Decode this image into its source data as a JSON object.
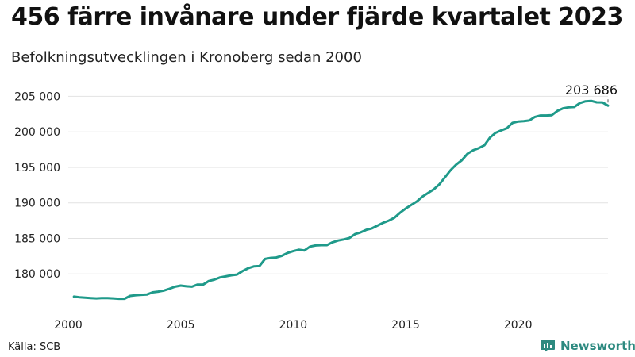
{
  "title": "456 färre invånare under fjärde kvartalet 2023",
  "subtitle": "Befolkningsutvecklingen i Kronoberg sedan 2000",
  "source": "Källa: SCB",
  "brand": "Newsworthy",
  "colors": {
    "line": "#1f9a8a",
    "grid": "#e2e2e2",
    "brand": "#2d8a80"
  },
  "chart_data": {
    "type": "line",
    "title": "456 färre invånare under fjärde kvartalet 2023",
    "subtitle": "Befolkningsutvecklingen i Kronoberg sedan 2000",
    "xlabel": "",
    "ylabel": "",
    "xlim": [
      2000,
      2024
    ],
    "ylim": [
      175000,
      206500
    ],
    "x_ticks": [
      2000,
      2005,
      2010,
      2015,
      2020
    ],
    "y_ticks": [
      180000,
      185000,
      190000,
      195000,
      200000,
      205000
    ],
    "y_tick_labels": [
      "180 000",
      "185 000",
      "190 000",
      "195 000",
      "200 000",
      "205 000"
    ],
    "grid": "horizontal",
    "end_label": "203 686",
    "series": [
      {
        "values": [
          [
            2000.25,
            176800
          ],
          [
            2000.5,
            176700
          ],
          [
            2000.75,
            176650
          ],
          [
            2001.0,
            176600
          ],
          [
            2001.25,
            176550
          ],
          [
            2001.5,
            176600
          ],
          [
            2001.75,
            176600
          ],
          [
            2002.0,
            176550
          ],
          [
            2002.25,
            176500
          ],
          [
            2002.5,
            176500
          ],
          [
            2002.75,
            176900
          ],
          [
            2003.0,
            177000
          ],
          [
            2003.25,
            177050
          ],
          [
            2003.5,
            177100
          ],
          [
            2003.75,
            177400
          ],
          [
            2004.0,
            177500
          ],
          [
            2004.25,
            177650
          ],
          [
            2004.5,
            177900
          ],
          [
            2004.75,
            178200
          ],
          [
            2005.0,
            178350
          ],
          [
            2005.25,
            178250
          ],
          [
            2005.5,
            178200
          ],
          [
            2005.75,
            178500
          ],
          [
            2006.0,
            178500
          ],
          [
            2006.25,
            179000
          ],
          [
            2006.5,
            179200
          ],
          [
            2006.75,
            179500
          ],
          [
            2007.0,
            179650
          ],
          [
            2007.25,
            179800
          ],
          [
            2007.5,
            179900
          ],
          [
            2007.75,
            180400
          ],
          [
            2008.0,
            180800
          ],
          [
            2008.25,
            181050
          ],
          [
            2008.5,
            181100
          ],
          [
            2008.75,
            182100
          ],
          [
            2009.0,
            182250
          ],
          [
            2009.25,
            182300
          ],
          [
            2009.5,
            182550
          ],
          [
            2009.75,
            182950
          ],
          [
            2010.0,
            183200
          ],
          [
            2010.25,
            183400
          ],
          [
            2010.5,
            183300
          ],
          [
            2010.75,
            183850
          ],
          [
            2011.0,
            184000
          ],
          [
            2011.25,
            184050
          ],
          [
            2011.5,
            184050
          ],
          [
            2011.75,
            184450
          ],
          [
            2012.0,
            184700
          ],
          [
            2012.25,
            184850
          ],
          [
            2012.5,
            185050
          ],
          [
            2012.75,
            185600
          ],
          [
            2013.0,
            185850
          ],
          [
            2013.25,
            186200
          ],
          [
            2013.5,
            186400
          ],
          [
            2013.75,
            186800
          ],
          [
            2014.0,
            187200
          ],
          [
            2014.25,
            187500
          ],
          [
            2014.5,
            187900
          ],
          [
            2014.75,
            188600
          ],
          [
            2015.0,
            189200
          ],
          [
            2015.25,
            189700
          ],
          [
            2015.5,
            190200
          ],
          [
            2015.75,
            190900
          ],
          [
            2016.0,
            191400
          ],
          [
            2016.25,
            191900
          ],
          [
            2016.5,
            192600
          ],
          [
            2016.75,
            193600
          ],
          [
            2017.0,
            194600
          ],
          [
            2017.25,
            195400
          ],
          [
            2017.5,
            196000
          ],
          [
            2017.75,
            196900
          ],
          [
            2018.0,
            197400
          ],
          [
            2018.25,
            197700
          ],
          [
            2018.5,
            198100
          ],
          [
            2018.75,
            199200
          ],
          [
            2019.0,
            199850
          ],
          [
            2019.25,
            200200
          ],
          [
            2019.5,
            200500
          ],
          [
            2019.75,
            201250
          ],
          [
            2020.0,
            201450
          ],
          [
            2020.25,
            201500
          ],
          [
            2020.5,
            201600
          ],
          [
            2020.75,
            202100
          ],
          [
            2021.0,
            202300
          ],
          [
            2021.25,
            202300
          ],
          [
            2021.5,
            202350
          ],
          [
            2021.75,
            202950
          ],
          [
            2022.0,
            203300
          ],
          [
            2022.25,
            203450
          ],
          [
            2022.5,
            203500
          ],
          [
            2022.75,
            204050
          ],
          [
            2023.0,
            204300
          ],
          [
            2023.25,
            204350
          ],
          [
            2023.5,
            204150
          ],
          [
            2023.75,
            204142
          ],
          [
            2024.0,
            203686
          ]
        ]
      }
    ]
  }
}
